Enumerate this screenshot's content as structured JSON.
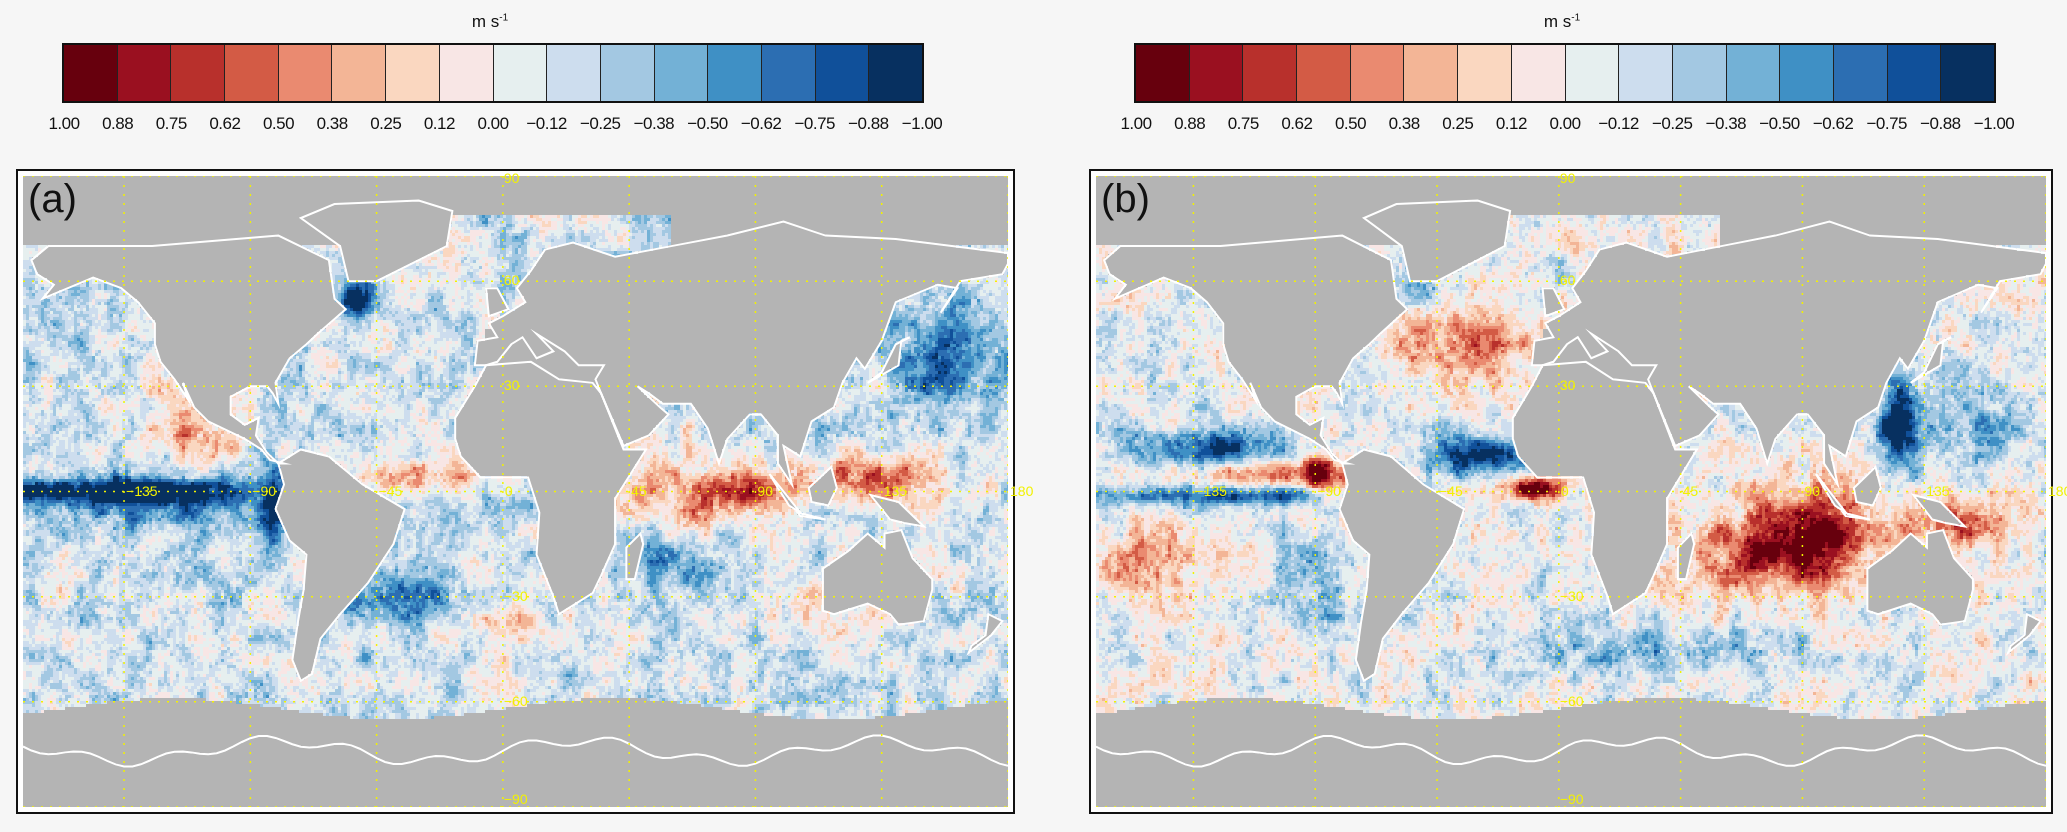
{
  "colorbar": {
    "unit": "m s",
    "unit_exponent": "-1",
    "tick_labels": [
      "1.00",
      "0.88",
      "0.75",
      "0.62",
      "0.50",
      "0.38",
      "0.25",
      "0.12",
      "0.00",
      "−0.12",
      "−0.25",
      "−0.38",
      "−0.50",
      "−0.62",
      "−0.75",
      "−0.88",
      "−1.00"
    ],
    "colors": [
      "#67000d",
      "#9a1020",
      "#b8302c",
      "#d35b45",
      "#ea8a70",
      "#f3b596",
      "#fad7c0",
      "#f8e6e5",
      "#e6efef",
      "#cdddee",
      "#a3c8e2",
      "#73b1d6",
      "#3f90c5",
      "#2c6eb2",
      "#10509a",
      "#073060"
    ],
    "range": [
      1.0,
      -1.0
    ]
  },
  "map_style": {
    "land_color": "#b4b4b4",
    "coastline_color": "#ffffff",
    "grid_color": "#f2f200",
    "grid": "dotted"
  },
  "axes": {
    "lon_ticks": [
      {
        "value": -135,
        "label": "−135"
      },
      {
        "value": -90,
        "label": "−90"
      },
      {
        "value": -45,
        "label": "−45"
      },
      {
        "value": 0,
        "label": "0"
      },
      {
        "value": 45,
        "label": "45"
      },
      {
        "value": 90,
        "label": "90"
      },
      {
        "value": 135,
        "label": "135"
      },
      {
        "value": 180,
        "label": "180"
      }
    ],
    "lat_ticks": [
      {
        "value": 90,
        "label": "90"
      },
      {
        "value": 60,
        "label": "60"
      },
      {
        "value": 30,
        "label": "30"
      },
      {
        "value": -30,
        "label": "−30"
      },
      {
        "value": -60,
        "label": "−60"
      },
      {
        "value": -90,
        "label": "−90"
      }
    ],
    "lon_range": [
      -171,
      180
    ],
    "lat_range": [
      -90,
      90
    ]
  },
  "panels": [
    {
      "label": "(a)"
    },
    {
      "label": "(b)"
    }
  ]
}
